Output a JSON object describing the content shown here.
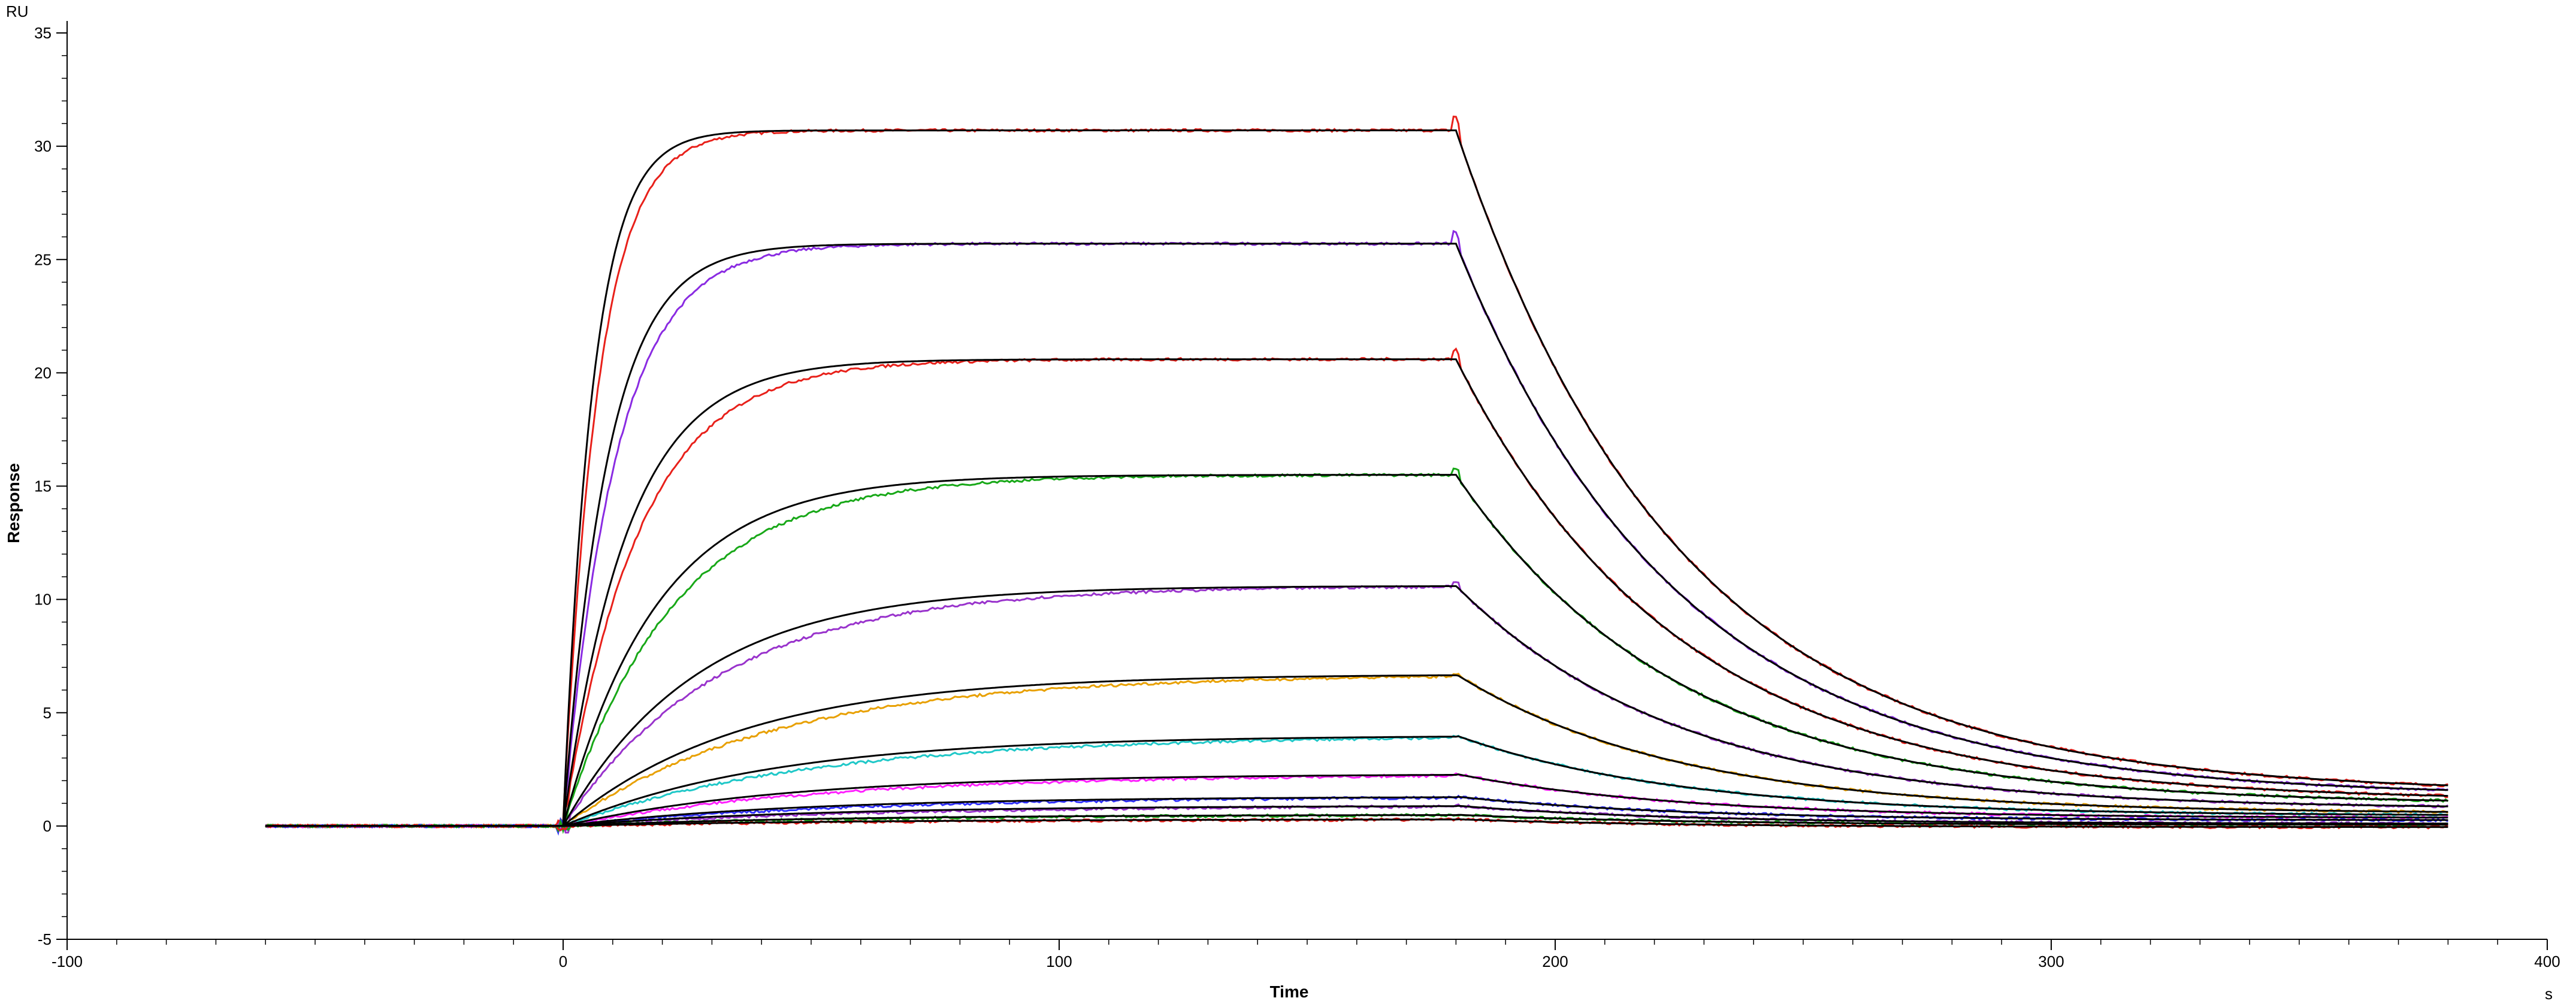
{
  "chart_data": {
    "type": "line",
    "title": "",
    "xlabel": "Time",
    "ylabel": "Response",
    "x_unit": "s",
    "y_unit": "RU",
    "xlim": [
      -100,
      400
    ],
    "ylim": [
      -5,
      35
    ],
    "x_ticks": [
      -100,
      0,
      100,
      200,
      300,
      400
    ],
    "y_ticks": [
      -5,
      0,
      5,
      10,
      15,
      20,
      25,
      30,
      35
    ],
    "x_tick_minor_step": 10,
    "y_tick_minor_step": 1,
    "grid": false,
    "legend": "none",
    "baseline_start": -60,
    "injection_start": 0,
    "injection_end": 180,
    "end_time": 380,
    "fit_color": "#000000",
    "series": [
      {
        "color": "#e8201a",
        "peak": 30.7,
        "tau_on": 6,
        "dissoc_end": 1.45
      },
      {
        "color": "#8a2be2",
        "peak": 25.7,
        "tau_on": 9,
        "dissoc_end": 1.3
      },
      {
        "color": "#e8201a",
        "peak": 20.6,
        "tau_on": 13,
        "dissoc_end": 1.1
      },
      {
        "color": "#18a818",
        "peak": 15.5,
        "tau_on": 19,
        "dissoc_end": 0.95
      },
      {
        "color": "#9933cc",
        "peak": 10.6,
        "tau_on": 27,
        "dissoc_end": 0.75
      },
      {
        "color": "#e8a000",
        "peak": 6.7,
        "tau_on": 36,
        "dissoc_end": 0.55
      },
      {
        "color": "#20c8c8",
        "peak": 4.0,
        "tau_on": 42,
        "dissoc_end": 0.45
      },
      {
        "color": "#ff20ff",
        "peak": 2.3,
        "tau_on": 45,
        "dissoc_end": 0.35
      },
      {
        "color": "#3030ff",
        "peak": 1.3,
        "tau_on": 48,
        "dissoc_end": 0.25
      },
      {
        "color": "#9933cc",
        "peak": 0.9,
        "tau_on": 50,
        "dissoc_end": 0.1
      },
      {
        "color": "#18a818",
        "peak": 0.5,
        "tau_on": 52,
        "dissoc_end": 0.05
      },
      {
        "color": "#e8201a",
        "peak": 0.3,
        "tau_on": 55,
        "dissoc_end": -0.05
      }
    ]
  }
}
